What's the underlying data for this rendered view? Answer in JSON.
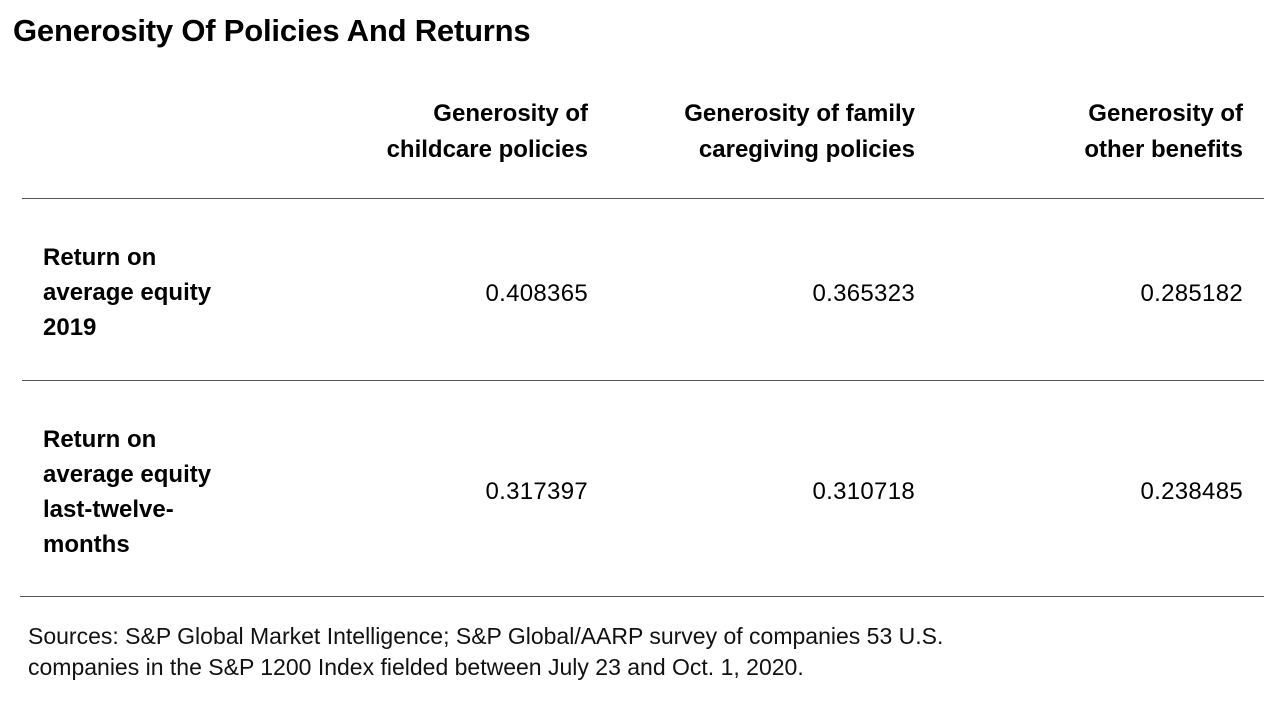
{
  "chart_data": {
    "type": "table",
    "title": "Generosity Of Policies And Returns",
    "columns": [
      [
        "Generosity of",
        "childcare policies"
      ],
      [
        "Generosity of family",
        "caregiving policies"
      ],
      [
        "Generosity of",
        "other benefits"
      ]
    ],
    "rows": [
      {
        "label": [
          "Return on",
          "average equity",
          "2019"
        ],
        "values": [
          "0.408365",
          "0.365323",
          "0.285182"
        ]
      },
      {
        "label": [
          "Return on",
          "average equity",
          "last-twelve-",
          "months"
        ],
        "values": [
          "0.317397",
          "0.310718",
          "0.238485"
        ]
      }
    ],
    "source": [
      "Sources: S&P Global Market Intelligence; S&P Global/AARP survey of companies 53 U.S.",
      "companies in the S&P 1200 Index fielded between July 23 and Oct. 1, 2020."
    ]
  }
}
